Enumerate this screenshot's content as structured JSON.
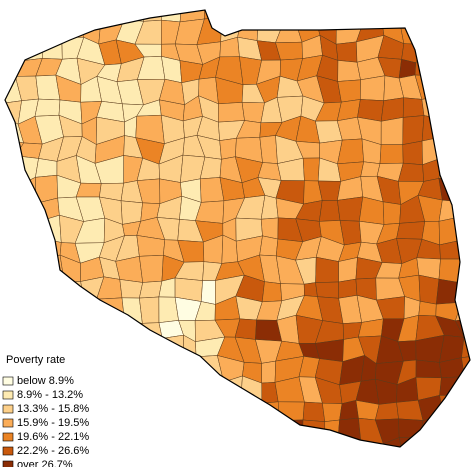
{
  "legend": {
    "title": "Poverty rate",
    "items": [
      {
        "label": "below 8.9%",
        "color": "#fffde2"
      },
      {
        "label": "8.9% - 13.2%",
        "color": "#feebb2"
      },
      {
        "label": "13.3% - 15.8%",
        "color": "#fdd08a"
      },
      {
        "label": "15.9% - 19.5%",
        "color": "#fbad58"
      },
      {
        "label": "19.6% - 22.1%",
        "color": "#eb8425"
      },
      {
        "label": "22.2% - 26.6%",
        "color": "#c9590d"
      },
      {
        "label": "over 26.7%",
        "color": "#8b2d05"
      }
    ]
  }
}
